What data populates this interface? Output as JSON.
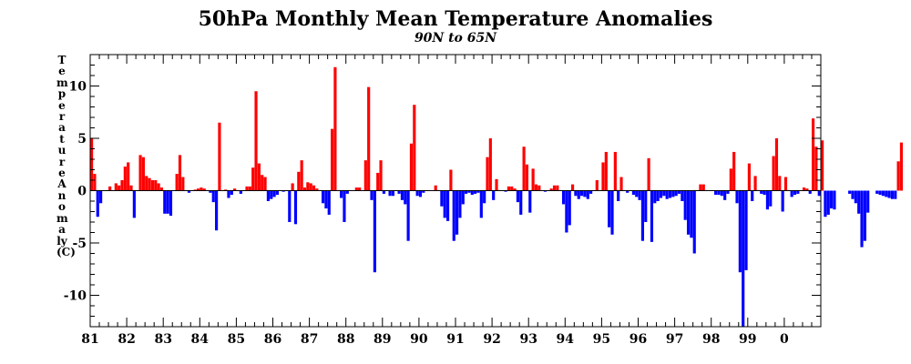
{
  "chart_data": {
    "type": "bar",
    "title": "50hPa Monthly Mean Temperature Anomalies",
    "subtitle": "90N to 65N",
    "ylabel": "Temperature Anomaly (C)",
    "xlabel": "",
    "xlim": [
      1981.0,
      2001.0
    ],
    "ylim": [
      -13,
      13
    ],
    "yticks": [
      -10,
      -5,
      0,
      5,
      10
    ],
    "xtick_labels": [
      "81",
      "82",
      "83",
      "84",
      "85",
      "86",
      "87",
      "88",
      "89",
      "90",
      "91",
      "92",
      "93",
      "94",
      "95",
      "96",
      "97",
      "98",
      "99",
      "0"
    ],
    "grid": false,
    "colors": {
      "positive": "#ff0000",
      "negative": "#0000ff",
      "axis": "#000000"
    },
    "start_year": 1981,
    "values": [
      5.0,
      1.6,
      -2.5,
      -1.2,
      0,
      0,
      0.4,
      0,
      0.7,
      0.5,
      1.0,
      2.3,
      2.7,
      0.5,
      -2.6,
      0,
      3.4,
      3.2,
      1.4,
      1.2,
      1.0,
      1.0,
      0.7,
      0.3,
      -2.2,
      -2.2,
      -2.4,
      0,
      1.6,
      3.4,
      1.3,
      0,
      -0.2,
      0,
      0.1,
      0.2,
      0.3,
      0.2,
      0,
      -0.2,
      -1.1,
      -3.8,
      6.5,
      0,
      0.1,
      -0.7,
      -0.4,
      0.2,
      0,
      -0.3,
      0,
      0.4,
      0.4,
      2.2,
      9.5,
      2.6,
      1.5,
      1.3,
      -1.0,
      -0.8,
      -0.6,
      -0.4,
      0,
      -0.1,
      0,
      -3.0,
      0.7,
      -3.2,
      1.8,
      2.9,
      0.3,
      0.8,
      0.7,
      0.5,
      0.2,
      0,
      -1.2,
      -1.7,
      -2.3,
      5.9,
      11.8,
      0,
      -0.7,
      -3.0,
      -0.3,
      0,
      0,
      0.3,
      0.3,
      0,
      2.9,
      9.9,
      -0.9,
      -7.8,
      1.7,
      2.9,
      -0.3,
      0,
      -0.5,
      -0.5,
      0,
      -0.3,
      -0.9,
      -1.3,
      -4.8,
      4.5,
      8.2,
      -0.5,
      -0.6,
      -0.2,
      0,
      0,
      0,
      0.5,
      0,
      -1.5,
      -2.6,
      -2.9,
      2.0,
      -4.8,
      -4.2,
      -2.6,
      -1.3,
      -0.3,
      -0.2,
      -0.4,
      -0.3,
      -0.2,
      -2.6,
      -1.2,
      3.2,
      5.0,
      -0.9,
      1.1,
      0,
      0,
      -0.1,
      0.4,
      0.4,
      0.2,
      -1.1,
      -2.3,
      4.2,
      2.5,
      -2.1,
      2.1,
      0.6,
      0.5,
      0,
      -0.1,
      0,
      0.2,
      0.5,
      0.5,
      0,
      -1.3,
      -4.0,
      -3.3,
      0.6,
      -0.5,
      -0.8,
      -0.5,
      -0.6,
      -0.8,
      -0.3,
      0,
      1.0,
      0,
      2.7,
      3.7,
      -3.5,
      -4.2,
      3.7,
      -1.0,
      1.3,
      0,
      -0.2,
      0,
      -0.4,
      -0.6,
      -0.9,
      -4.8,
      -3.0,
      3.1,
      -4.9,
      -1.2,
      -1.0,
      -0.7,
      -0.5,
      -0.8,
      -0.7,
      -0.6,
      -0.5,
      -0.3,
      -1.0,
      -2.8,
      -4.2,
      -4.5,
      -6.0,
      0,
      0.6,
      0.6,
      0,
      0,
      0,
      -0.4,
      -0.4,
      -0.5,
      -0.9,
      -0.3,
      2.1,
      3.7,
      -1.2,
      -7.8,
      -13.0,
      -7.6,
      2.6,
      -1.0,
      1.4,
      0,
      -0.3,
      -0.4,
      -1.8,
      -1.5,
      3.3,
      5.0,
      1.4,
      -2.0,
      1.3,
      0,
      -0.6,
      -0.4,
      -0.3,
      0,
      0.3,
      0.2,
      -0.3,
      6.9,
      4.2,
      -0.5,
      4.8,
      -2.5,
      -2.3,
      -1.7,
      -1.8,
      0,
      0,
      0,
      0,
      -0.3,
      -0.8,
      -1.2,
      -2.2,
      -5.4,
      -4.8,
      -2.1,
      0,
      0,
      -0.3,
      -0.4,
      -0.5,
      -0.6,
      -0.7,
      -0.8,
      -0.8,
      2.8,
      4.6
    ]
  }
}
